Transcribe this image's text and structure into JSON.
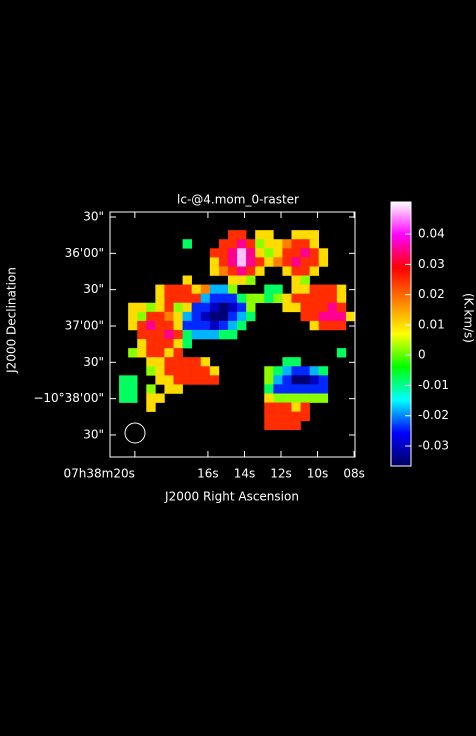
{
  "chart_data": {
    "type": "heatmap",
    "title": "lc-@4.mom_0-raster",
    "x_label": "J2000 Right Ascension",
    "y_label": "J2000 Declination",
    "colorbar_label": "(K.km/s)",
    "xlim": [
      21.36,
      7.95
    ],
    "xticks": [
      {
        "value": 20,
        "label": "07h38m20s"
      },
      {
        "value": 16,
        "label": "16s"
      },
      {
        "value": 14,
        "label": "14s"
      },
      {
        "value": 12,
        "label": "12s"
      },
      {
        "value": 10,
        "label": "10s"
      },
      {
        "value": 8,
        "label": "08s"
      }
    ],
    "ylim": [
      -10.646718,
      -10.590519
    ],
    "yticks": [
      {
        "value": -10.591667,
        "label": "30\""
      },
      {
        "value": -10.6,
        "label": "36'00\""
      },
      {
        "value": -10.608333,
        "label": "30\""
      },
      {
        "value": -10.616667,
        "label": "37'00\""
      },
      {
        "value": -10.625,
        "label": "30\""
      },
      {
        "value": -10.633333,
        "label": "−10°38'00\""
      },
      {
        "value": -10.641667,
        "label": "30\""
      }
    ],
    "clim": [
      -0.0366,
      0.0506
    ],
    "cticks": [
      -0.03,
      -0.02,
      -0.01,
      0,
      0.01,
      0.02,
      0.03,
      0.04
    ],
    "colormap": [
      "#000060",
      "#0000ff",
      "#00ffff",
      "#00ff00",
      "#ffff00",
      "#ff8000",
      "#ff0000",
      "#ff00ff",
      "#ffffff"
    ],
    "z": [
      [
        null,
        null,
        null,
        null,
        null,
        null,
        null,
        null,
        null,
        null,
        null,
        null,
        null,
        null,
        null,
        null,
        null,
        null,
        null,
        null,
        null,
        null,
        null,
        null,
        null,
        null,
        null
      ],
      [
        null,
        null,
        null,
        null,
        null,
        null,
        null,
        null,
        null,
        null,
        null,
        null,
        null,
        null,
        null,
        null,
        null,
        null,
        null,
        null,
        null,
        null,
        null,
        null,
        null,
        null,
        null
      ],
      [
        null,
        null,
        null,
        null,
        null,
        null,
        null,
        null,
        null,
        null,
        null,
        null,
        null,
        0.025,
        0.025,
        null,
        0.01,
        0.01,
        null,
        null,
        0.01,
        0.01,
        0.01,
        null,
        null,
        null,
        null
      ],
      [
        null,
        null,
        null,
        null,
        null,
        null,
        null,
        null,
        -0.008,
        null,
        null,
        null,
        0.025,
        0.025,
        0.035,
        0.025,
        0.002,
        0.01,
        0.01,
        0.018,
        0.025,
        0.025,
        0.01,
        null,
        null,
        null,
        null
      ],
      [
        null,
        null,
        null,
        null,
        null,
        null,
        null,
        null,
        null,
        null,
        null,
        0.025,
        0.025,
        0.035,
        0.048,
        0.035,
        0.01,
        0.002,
        0.01,
        0.025,
        0.025,
        0.035,
        0.025,
        0.01,
        null,
        null,
        null
      ],
      [
        null,
        null,
        null,
        null,
        null,
        null,
        null,
        null,
        null,
        null,
        null,
        0.01,
        0.025,
        0.035,
        0.048,
        0.035,
        0.025,
        0.01,
        0.018,
        0.025,
        0.035,
        0.025,
        0.025,
        0.01,
        null,
        null,
        null
      ],
      [
        null,
        null,
        null,
        null,
        null,
        null,
        null,
        null,
        null,
        null,
        null,
        0.01,
        0.018,
        0.025,
        0.035,
        0.025,
        0.01,
        null,
        null,
        0.01,
        0.025,
        0.025,
        0.01,
        null,
        null,
        null,
        null
      ],
      [
        null,
        null,
        null,
        null,
        null,
        null,
        null,
        null,
        0.01,
        null,
        null,
        null,
        null,
        0.01,
        0.01,
        0.002,
        null,
        null,
        null,
        null,
        0.01,
        0.002,
        null,
        null,
        null,
        null,
        null
      ],
      [
        null,
        null,
        null,
        null,
        null,
        0.01,
        0.025,
        0.025,
        0.025,
        0.01,
        0.018,
        -0.018,
        -0.018,
        0.002,
        null,
        null,
        null,
        -0.008,
        -0.008,
        null,
        0.01,
        0.01,
        0.025,
        0.025,
        0.025,
        0.01,
        null
      ],
      [
        null,
        null,
        null,
        null,
        null,
        0.01,
        0.025,
        0.025,
        0.025,
        0.025,
        -0.018,
        -0.024,
        -0.024,
        -0.024,
        -0.008,
        0.002,
        0.002,
        -0.008,
        0.002,
        0.01,
        0.025,
        0.025,
        0.025,
        0.025,
        0.025,
        0.01,
        null
      ],
      [
        null,
        null,
        0.01,
        0.01,
        0.002,
        0.01,
        0.025,
        0.002,
        0.01,
        -0.024,
        -0.024,
        -0.03,
        -0.035,
        -0.03,
        -0.024,
        0.002,
        null,
        null,
        null,
        0.01,
        0.01,
        0.025,
        0.025,
        0.025,
        0.035,
        0.025,
        null
      ],
      [
        null,
        null,
        0.01,
        0.002,
        0.025,
        0.025,
        0.018,
        0.01,
        -0.018,
        -0.024,
        -0.03,
        -0.035,
        -0.035,
        -0.024,
        -0.018,
        -0.008,
        null,
        null,
        null,
        null,
        null,
        0.025,
        0.025,
        0.035,
        0.035,
        0.035,
        0.01
      ],
      [
        null,
        null,
        0.01,
        0.025,
        0.035,
        0.025,
        0.025,
        0.01,
        -0.024,
        -0.024,
        -0.024,
        -0.03,
        -0.024,
        -0.018,
        -0.008,
        null,
        null,
        null,
        null,
        null,
        null,
        null,
        0.01,
        0.025,
        0.025,
        0.025,
        null
      ],
      [
        null,
        null,
        null,
        0.025,
        0.025,
        0.025,
        0.035,
        0.025,
        -0.008,
        -0.018,
        -0.018,
        -0.018,
        -0.008,
        -0.008,
        null,
        null,
        null,
        null,
        null,
        null,
        null,
        null,
        null,
        null,
        null,
        null,
        null
      ],
      [
        null,
        null,
        null,
        0.01,
        0.025,
        0.025,
        0.025,
        0.01,
        -0.008,
        null,
        null,
        null,
        null,
        null,
        null,
        null,
        null,
        null,
        null,
        null,
        null,
        null,
        null,
        null,
        null,
        null,
        null
      ],
      [
        null,
        null,
        0.002,
        0.01,
        0.025,
        0.025,
        0.01,
        0.025,
        null,
        null,
        null,
        null,
        null,
        null,
        null,
        null,
        null,
        null,
        null,
        null,
        null,
        null,
        null,
        null,
        null,
        -0.008,
        null
      ],
      [
        null,
        null,
        null,
        null,
        0.01,
        0.01,
        0.025,
        0.025,
        0.025,
        0.025,
        0.01,
        null,
        null,
        null,
        null,
        null,
        null,
        null,
        null,
        -0.008,
        -0.008,
        null,
        null,
        null,
        null,
        null,
        null
      ],
      [
        null,
        null,
        null,
        null,
        0.002,
        0.01,
        0.025,
        0.025,
        0.025,
        0.025,
        0.025,
        0.01,
        null,
        null,
        null,
        null,
        null,
        0.002,
        -0.008,
        -0.018,
        -0.024,
        -0.024,
        -0.018,
        -0.008,
        null,
        null,
        null
      ],
      [
        null,
        -0.008,
        -0.008,
        null,
        null,
        0.01,
        0.01,
        0.025,
        0.025,
        0.025,
        0.025,
        0.025,
        null,
        null,
        null,
        null,
        null,
        0.002,
        -0.018,
        -0.024,
        -0.035,
        -0.035,
        -0.03,
        -0.024,
        null,
        null,
        null
      ],
      [
        null,
        -0.008,
        -0.008,
        null,
        0.002,
        null,
        0.01,
        0.01,
        null,
        null,
        null,
        null,
        null,
        null,
        null,
        null,
        null,
        -0.008,
        -0.024,
        -0.024,
        -0.024,
        -0.024,
        -0.024,
        -0.024,
        null,
        null,
        null
      ],
      [
        null,
        -0.008,
        -0.008,
        null,
        0.01,
        0.01,
        null,
        null,
        null,
        null,
        null,
        null,
        null,
        null,
        null,
        null,
        null,
        0.01,
        0.002,
        0.002,
        0.002,
        0.002,
        0.002,
        0.002,
        null,
        null,
        null
      ],
      [
        null,
        null,
        null,
        null,
        0.01,
        null,
        null,
        null,
        null,
        null,
        null,
        null,
        null,
        null,
        null,
        null,
        null,
        0.025,
        0.025,
        0.025,
        0.01,
        0.025,
        null,
        null,
        null,
        null,
        null
      ],
      [
        null,
        null,
        null,
        null,
        null,
        null,
        null,
        null,
        null,
        null,
        null,
        null,
        null,
        null,
        null,
        null,
        null,
        0.025,
        0.025,
        0.025,
        0.025,
        0.025,
        null,
        null,
        null,
        null,
        null
      ],
      [
        null,
        null,
        null,
        null,
        null,
        null,
        null,
        null,
        null,
        null,
        null,
        null,
        null,
        null,
        null,
        null,
        null,
        0.025,
        0.025,
        0.025,
        0.025,
        null,
        null,
        null,
        null,
        null,
        null
      ],
      [
        null,
        null,
        null,
        null,
        null,
        null,
        null,
        null,
        null,
        null,
        null,
        null,
        null,
        null,
        null,
        null,
        null,
        null,
        null,
        null,
        null,
        null,
        null,
        null,
        null,
        null,
        null
      ],
      [
        null,
        null,
        null,
        null,
        null,
        null,
        null,
        null,
        null,
        null,
        null,
        null,
        null,
        null,
        null,
        null,
        null,
        null,
        null,
        null,
        null,
        null,
        null,
        null,
        null,
        null,
        null
      ],
      [
        null,
        null,
        null,
        null,
        null,
        null,
        null,
        null,
        null,
        null,
        null,
        null,
        null,
        null,
        null,
        null,
        null,
        null,
        null,
        null,
        null,
        null,
        null,
        null,
        null,
        null,
        null
      ]
    ]
  }
}
